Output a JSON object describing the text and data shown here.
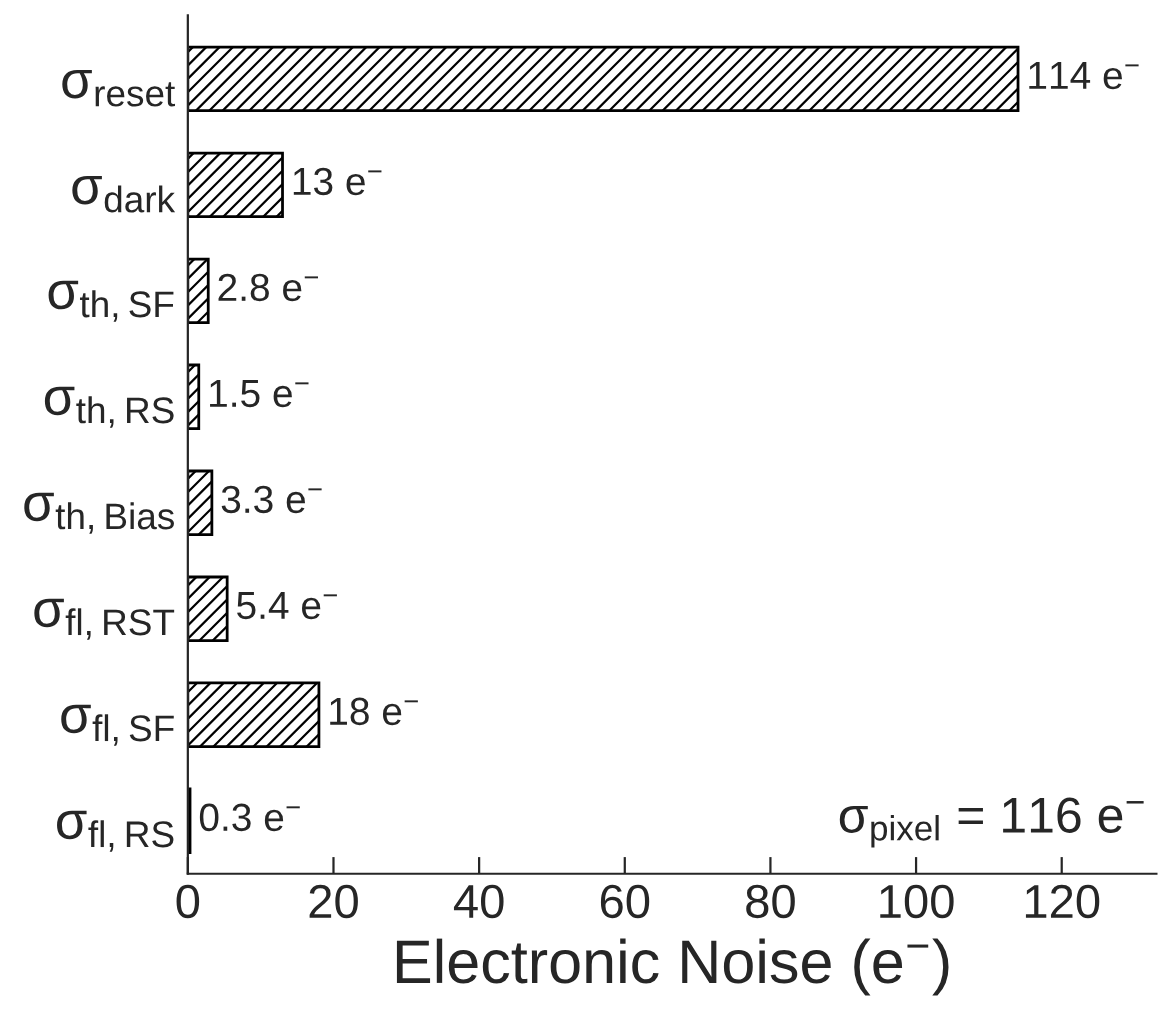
{
  "chart_data": {
    "type": "bar",
    "orientation": "horizontal",
    "xlabel": "Electronic Noise (e$^{−}$)",
    "categories": [
      "σ$_{reset}$",
      "σ$_{dark}$",
      "σ$_{th,SF}$",
      "σ$_{th,RS}$",
      "σ$_{th,Bias}$",
      "σ$_{fl,RST}$",
      "σ$_{fl,SF}$",
      "σ$_{fl,RS}$"
    ],
    "values": [
      114,
      13,
      2.8,
      1.5,
      3.3,
      5.4,
      18,
      0.3
    ],
    "value_labels": [
      "114 e$^{−}$",
      "13 e$^{−}$",
      "2.8 e$^{−}$",
      "1.5 e$^{−}$",
      "3.3 e$^{−}$",
      "5.4 e$^{−}$",
      "18 e$^{−}$",
      "0.3 e$^{−}$"
    ],
    "color": "#000000",
    "xlim": [
      0,
      133
    ],
    "xticks": [
      0,
      20,
      40,
      60,
      80,
      100,
      120
    ],
    "annotations": [
      "σ$_{pixel}$ = 116 e$^{−}$"
    ],
    "grid": false,
    "legend": false
  }
}
